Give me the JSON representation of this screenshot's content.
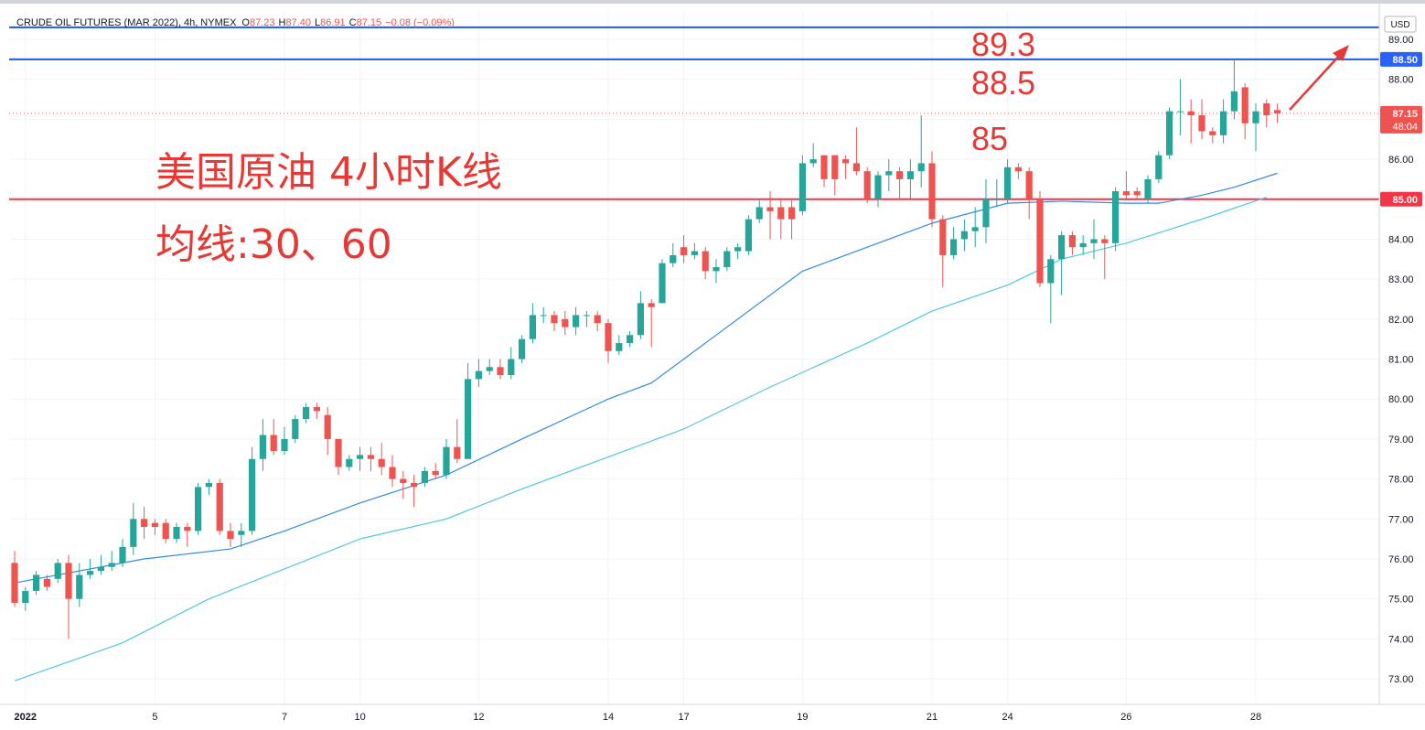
{
  "chart_data": {
    "type": "candlestick",
    "title": "CRUDE OIL FUTURES (MAR 2022), 4h, NYMEX",
    "ohlc": [
      {
        "label": "O",
        "value": "87.23"
      },
      {
        "label": "H",
        "value": "87.40"
      },
      {
        "label": "L",
        "value": "86.91"
      },
      {
        "label": "C",
        "value": "87.15"
      }
    ],
    "change": "−0.08 (−0.09%)",
    "currency": "USD",
    "up_color": "#26a69a",
    "down_color": "#ef5350",
    "categories": [
      null,
      "2022",
      null,
      null,
      null,
      null,
      null,
      null,
      null,
      null,
      null,
      null,
      null,
      "5",
      null,
      null,
      null,
      null,
      null,
      null,
      null,
      null,
      null,
      null,
      null,
      "7",
      null,
      null,
      null,
      null,
      null,
      null,
      "10",
      null,
      null,
      null,
      null,
      null,
      null,
      null,
      null,
      null,
      null,
      "12",
      null,
      null,
      null,
      null,
      null,
      null,
      null,
      null,
      null,
      null,
      null,
      "14",
      null,
      null,
      null,
      null,
      null,
      null,
      "17",
      null,
      null,
      null,
      null,
      null,
      null,
      null,
      null,
      null,
      null,
      "19",
      null,
      null,
      null,
      null,
      null,
      null,
      null,
      null,
      null,
      null,
      null,
      "21",
      null,
      null,
      null,
      null,
      null,
      null,
      "24",
      null,
      null,
      null,
      null,
      null,
      null,
      null,
      null,
      null,
      null,
      "26",
      null,
      null,
      null,
      null,
      null,
      null,
      null,
      null,
      null,
      null,
      null,
      "28",
      null,
      null
    ],
    "open": [
      75.9,
      74.9,
      75.2,
      75.5,
      75.5,
      75.9,
      75.0,
      75.6,
      75.7,
      75.8,
      75.9,
      76.3,
      77.0,
      76.9,
      76.9,
      76.5,
      76.8,
      76.7,
      77.8,
      77.9,
      76.7,
      76.6,
      76.7,
      78.5,
      79.1,
      78.7,
      79.0,
      79.5,
      79.8,
      79.6,
      79.0,
      78.3,
      78.5,
      78.6,
      78.5,
      78.3,
      78.0,
      77.9,
      77.9,
      78.2,
      78.1,
      78.8,
      78.5,
      80.5,
      80.7,
      80.8,
      80.6,
      81.0,
      81.5,
      82.1,
      82.1,
      82.0,
      81.8,
      82.1,
      82.1,
      81.9,
      81.2,
      81.4,
      81.6,
      82.4,
      82.4,
      83.4,
      83.8,
      83.6,
      83.7,
      83.2,
      83.3,
      83.7,
      83.7,
      84.5,
      84.8,
      84.8,
      84.8,
      84.7,
      85.9,
      86.1,
      86.1,
      86.0,
      85.9,
      85.7,
      85.0,
      85.6,
      85.7,
      85.5,
      85.7,
      85.9,
      84.5,
      83.6,
      84.0,
      84.2,
      84.3,
      85.0,
      85.0,
      85.8,
      85.7,
      85.0,
      82.9,
      83.5,
      84.1,
      83.8,
      83.9,
      84.0,
      83.9,
      85.2,
      85.2,
      85.0,
      85.5,
      86.1,
      87.2,
      87.2,
      87.1,
      86.7,
      86.6,
      87.2,
      87.8,
      86.9,
      87.4,
      87.23
    ],
    "high": [
      76.2,
      75.3,
      75.7,
      75.6,
      76.0,
      76.1,
      75.9,
      76.0,
      76.1,
      76.2,
      76.5,
      77.4,
      77.3,
      77.0,
      77.0,
      76.9,
      76.9,
      77.9,
      78.0,
      78.0,
      76.9,
      76.9,
      78.8,
      79.5,
      79.5,
      79.3,
      79.6,
      79.9,
      79.9,
      79.8,
      79.0,
      78.6,
      78.8,
      78.8,
      78.9,
      78.6,
      78.2,
      78.1,
      78.3,
      78.4,
      79.0,
      79.5,
      80.9,
      81.0,
      81.0,
      81.0,
      81.3,
      81.6,
      82.4,
      82.3,
      82.2,
      82.2,
      82.3,
      82.2,
      82.2,
      82.0,
      81.6,
      81.7,
      82.7,
      82.5,
      83.5,
      83.9,
      84.1,
      83.9,
      83.8,
      83.5,
      83.8,
      83.9,
      84.6,
      85.0,
      85.2,
      85.0,
      85.0,
      86.1,
      86.4,
      86.1,
      86.1,
      86.1,
      86.8,
      85.8,
      85.7,
      86.0,
      85.8,
      86.0,
      87.1,
      86.2,
      84.6,
      84.3,
      84.5,
      84.8,
      85.5,
      85.5,
      86.0,
      85.9,
      85.8,
      85.2,
      83.6,
      84.2,
      84.2,
      84.1,
      84.5,
      84.1,
      85.3,
      85.7,
      85.3,
      85.6,
      86.2,
      87.3,
      88.0,
      87.5,
      87.5,
      86.8,
      87.5,
      88.5,
      87.9,
      87.4,
      87.5,
      87.4
    ],
    "low": [
      74.8,
      74.7,
      75.1,
      75.2,
      75.4,
      74.0,
      74.8,
      75.5,
      75.6,
      75.7,
      75.8,
      76.1,
      76.5,
      76.6,
      76.4,
      76.4,
      76.3,
      76.6,
      77.6,
      76.6,
      76.3,
      76.3,
      76.6,
      78.2,
      78.6,
      78.6,
      78.9,
      79.4,
      79.5,
      78.6,
      78.1,
      78.2,
      78.2,
      78.2,
      78.1,
      77.8,
      77.5,
      77.3,
      77.8,
      78.0,
      78.0,
      78.4,
      78.5,
      80.3,
      80.6,
      80.5,
      80.5,
      80.9,
      81.4,
      81.9,
      81.7,
      81.6,
      81.6,
      81.8,
      81.7,
      80.9,
      81.1,
      81.3,
      81.5,
      81.3,
      82.4,
      83.3,
      83.4,
      83.5,
      83.0,
      82.9,
      83.2,
      83.5,
      83.6,
      84.4,
      84.0,
      84.0,
      84.0,
      84.6,
      85.8,
      85.3,
      85.1,
      85.5,
      85.6,
      84.9,
      84.8,
      85.2,
      85.0,
      85.0,
      85.3,
      84.3,
      82.8,
      83.5,
      83.7,
      83.8,
      83.9,
      84.8,
      84.9,
      85.5,
      84.5,
      82.8,
      81.9,
      82.6,
      83.6,
      83.6,
      83.5,
      83.0,
      83.7,
      85.0,
      85.0,
      84.9,
      85.4,
      86.0,
      86.6,
      86.4,
      86.5,
      86.4,
      86.4,
      87.0,
      86.5,
      86.2,
      86.8,
      86.91
    ],
    "close": [
      74.9,
      75.2,
      75.6,
      75.3,
      75.9,
      75.0,
      75.6,
      75.7,
      75.8,
      75.9,
      76.3,
      77.0,
      76.8,
      76.8,
      76.5,
      76.8,
      76.7,
      77.8,
      77.9,
      76.7,
      76.5,
      76.7,
      78.5,
      79.1,
      78.7,
      79.0,
      79.5,
      79.8,
      79.7,
      79.0,
      78.3,
      78.5,
      78.6,
      78.5,
      78.3,
      78.0,
      77.9,
      77.8,
      78.2,
      78.1,
      78.8,
      78.5,
      80.5,
      80.7,
      80.8,
      80.6,
      81.0,
      81.5,
      82.1,
      82.1,
      81.9,
      81.8,
      82.1,
      82.1,
      81.9,
      81.2,
      81.4,
      81.6,
      82.4,
      82.3,
      83.4,
      83.6,
      83.6,
      83.7,
      83.2,
      83.3,
      83.7,
      83.8,
      84.5,
      84.8,
      84.7,
      84.5,
      84.5,
      85.9,
      86.0,
      85.5,
      85.5,
      85.9,
      85.7,
      85.0,
      85.6,
      85.7,
      85.5,
      85.7,
      85.9,
      84.5,
      83.6,
      84.0,
      84.2,
      84.3,
      85.0,
      85.0,
      85.8,
      85.7,
      85.0,
      82.9,
      83.5,
      84.1,
      83.8,
      83.9,
      84.0,
      83.9,
      85.2,
      85.1,
      85.1,
      85.5,
      86.1,
      87.2,
      87.2,
      87.1,
      86.7,
      86.6,
      87.2,
      87.7,
      86.9,
      87.2,
      87.1,
      87.15
    ],
    "ma": [
      {
        "color": "#2f8be6",
        "x": [
          0,
          12,
          20,
          25,
          32,
          40,
          47,
          55,
          59,
          65,
          73,
          79,
          85,
          92,
          97,
          103,
          106,
          110,
          113,
          117
        ],
        "values": [
          75.4,
          76.0,
          76.25,
          76.7,
          77.4,
          78.1,
          79.0,
          80.0,
          80.4,
          81.6,
          83.2,
          83.8,
          84.4,
          84.9,
          84.95,
          84.9,
          84.9,
          85.1,
          85.3,
          85.65
        ]
      },
      {
        "color": "#4fc8e0",
        "x": [
          0,
          10,
          18,
          25,
          32,
          40,
          47,
          55,
          62,
          70,
          79,
          85,
          92,
          97,
          103,
          110,
          116
        ],
        "values": [
          72.95,
          73.9,
          75.0,
          75.75,
          76.5,
          77.0,
          77.75,
          78.55,
          79.25,
          80.3,
          81.4,
          82.2,
          82.85,
          83.5,
          83.9,
          84.5,
          85.05
        ]
      }
    ],
    "hlines": [
      {
        "value": 89.3,
        "color": "#1e5ae6",
        "width": 2
      },
      {
        "value": 88.5,
        "color": "#1e5ae6",
        "width": 2
      },
      {
        "value": 85,
        "color": "#f23645",
        "width": 2
      },
      {
        "value": 87.15,
        "color": "#ef5350",
        "width": 1,
        "dotted": true
      }
    ],
    "price_labels": [
      {
        "value": 88.5,
        "label": "88.50",
        "color": "#2962ff"
      },
      {
        "value": 87.15,
        "label": "87.15",
        "sublabel": "48:04",
        "color": "#ef5350"
      },
      {
        "value": 85,
        "label": "85.00",
        "color": "#f23645"
      }
    ],
    "annotations": [
      "89.3",
      "88.5",
      "85",
      "美国原油 4小时K线",
      "均线:30、60"
    ],
    "ylim": [
      72.36,
      89.71
    ],
    "yticks": [
      {
        "value": 73,
        "label": "73.00"
      },
      {
        "value": 74,
        "label": "74.00"
      },
      {
        "value": 75,
        "label": "75.00"
      },
      {
        "value": 76,
        "label": "76.00"
      },
      {
        "value": 77,
        "label": "77.00"
      },
      {
        "value": 78,
        "label": "78.00"
      },
      {
        "value": 79,
        "label": "79.00"
      },
      {
        "value": 80,
        "label": "80.00"
      },
      {
        "value": 81,
        "label": "81.00"
      },
      {
        "value": 82,
        "label": "82.00"
      },
      {
        "value": 83,
        "label": "83.00"
      },
      {
        "value": 84,
        "label": "84.00"
      },
      {
        "value": 85,
        "label": "85.00"
      },
      {
        "value": 86,
        "label": "86.00"
      },
      {
        "value": 87,
        "label": "87.00"
      },
      {
        "value": 88,
        "label": "88.00"
      },
      {
        "value": 89,
        "label": "89.00"
      }
    ],
    "grid": true
  }
}
